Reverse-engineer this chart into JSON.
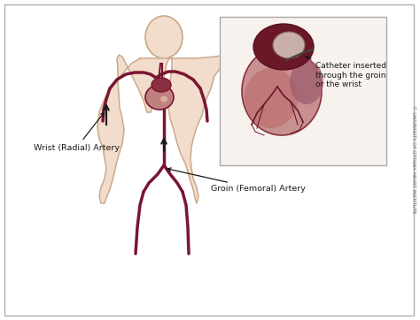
{
  "bg_color": "#ffffff",
  "border_color": "#b0b0b0",
  "body_fill": "#f2dccb",
  "body_stroke": "#c8a888",
  "artery_color": "#7a1530",
  "artery_color2": "#9b2040",
  "heart_fill_main": "#c07878",
  "heart_fill_dark": "#7a2030",
  "heart_fill_mid": "#a85060",
  "text_color": "#1a1a1a",
  "copyright_color": "#666666",
  "label_wrist": "Wrist (Radial) Artery",
  "label_groin": "Groin (Femoral) Artery",
  "label_catheter_line1": "Catheter inserted",
  "label_catheter_line2": "through the groin",
  "label_catheter_line3": "or the wrist",
  "copyright_text": "© UNIVERSITY OF OTTAWA HEART INSTITUTE",
  "inset_bg": "#f8f2ee",
  "inset_border": "#aaaaaa",
  "figsize": [
    4.74,
    3.62
  ],
  "dpi": 100
}
